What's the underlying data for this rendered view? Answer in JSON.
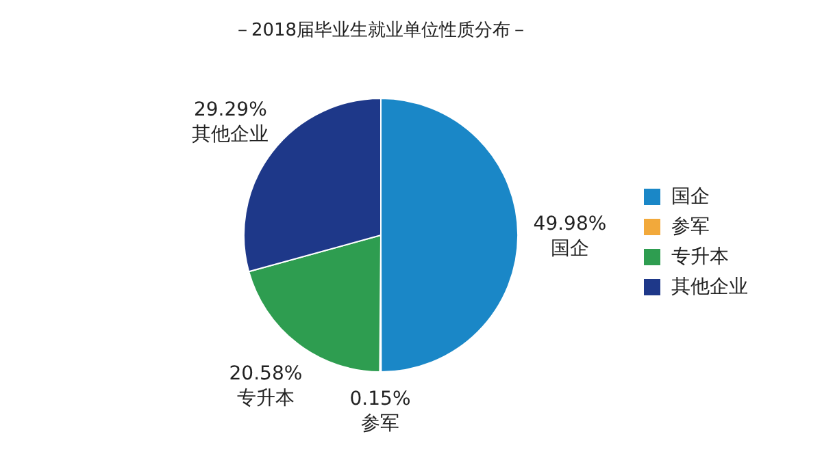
{
  "chart_data": {
    "type": "pie",
    "title": "－2018届毕业生就业单位性质分布－",
    "categories": [
      "国企",
      "参军",
      "专升本",
      "其他企业"
    ],
    "values": [
      49.98,
      0.15,
      20.58,
      29.29
    ],
    "value_labels": [
      "49.98%",
      "0.15%",
      "20.58%",
      "29.29%"
    ],
    "colors": [
      "#1a87c7",
      "#f2a93b",
      "#2e9d50",
      "#1e3889"
    ],
    "legend": "right"
  }
}
